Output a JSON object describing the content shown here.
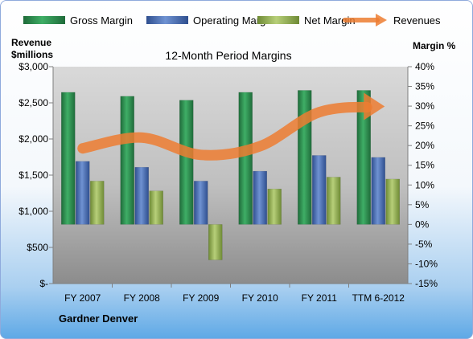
{
  "chart_data": {
    "type": "bar",
    "title": "12-Month Period Margins",
    "company": "Gardner Denver",
    "left_axis": {
      "label_line1": "Revenue",
      "label_line2": "$millions",
      "ylim": [
        0,
        3000
      ],
      "ticks": [
        0,
        500,
        1000,
        1500,
        2000,
        2500,
        3000
      ],
      "tick_labels": [
        "$-",
        "$500",
        "$1,000",
        "$1,500",
        "$2,000",
        "$2,500",
        "$3,000"
      ]
    },
    "right_axis": {
      "label": "Margin %",
      "ylim": [
        -15,
        40
      ],
      "ticks": [
        -15,
        -10,
        -5,
        0,
        5,
        10,
        15,
        20,
        25,
        30,
        35,
        40
      ],
      "tick_labels": [
        "-15%",
        "-10%",
        "-5%",
        "0%",
        "5%",
        "10%",
        "15%",
        "20%",
        "25%",
        "30%",
        "35%",
        "40%"
      ]
    },
    "categories": [
      "FY 2007",
      "FY 2008",
      "FY 2009",
      "FY 2010",
      "FY 2011",
      "TTM 6-2012"
    ],
    "series": [
      {
        "name": "Gross Margin",
        "kind": "bar",
        "axis": "right",
        "color": "#2e8b4e",
        "values": [
          33.5,
          32.5,
          31.5,
          33.5,
          34.0,
          34.0
        ]
      },
      {
        "name": "Operating Margin",
        "kind": "bar",
        "axis": "right",
        "color": "#4f73b8",
        "values": [
          16.0,
          14.5,
          11.0,
          13.5,
          17.5,
          17.0
        ]
      },
      {
        "name": "Net Margin",
        "kind": "bar",
        "axis": "right",
        "color": "#9ab35a",
        "values": [
          11.0,
          8.5,
          -9.0,
          9.0,
          12.0,
          11.5
        ]
      },
      {
        "name": "Revenues",
        "kind": "line",
        "axis": "left",
        "color": "#ed7d31",
        "values": [
          1870,
          2020,
          1780,
          1900,
          2370,
          2450
        ]
      }
    ],
    "legend_position": "top",
    "grid": false
  }
}
